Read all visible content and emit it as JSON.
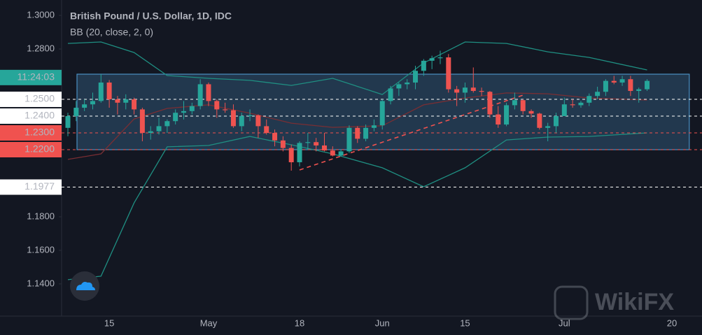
{
  "chart_data": {
    "type": "candlestick",
    "title": "British Pound / U.S. Dollar, 1D, IDC",
    "subtitle": "BB (20, close, 2, 0)",
    "categories": [
      null,
      null,
      null,
      null,
      null,
      "15",
      null,
      null,
      null,
      null,
      null,
      null,
      null,
      null,
      null,
      null,
      null,
      "May",
      null,
      null,
      null,
      null,
      null,
      null,
      null,
      null,
      null,
      null,
      "18",
      null,
      null,
      null,
      null,
      null,
      null,
      null,
      null,
      null,
      "Jun",
      null,
      null,
      null,
      null,
      null,
      null,
      null,
      null,
      null,
      "15",
      null,
      null,
      null,
      null,
      null,
      null,
      null,
      null,
      null,
      null,
      null,
      "Jul",
      null,
      null,
      null,
      null,
      null,
      null,
      null,
      null,
      null,
      null,
      null,
      null,
      "20"
    ],
    "open": [
      1.233,
      1.24,
      1.245,
      1.247,
      1.249,
      1.26,
      1.25,
      1.248,
      1.25,
      1.244,
      1.23,
      1.231,
      1.234,
      1.237,
      1.242,
      1.243,
      1.246,
      1.259,
      1.249,
      1.244,
      1.2435,
      1.234,
      1.24,
      1.2405,
      1.234,
      1.23,
      1.2255,
      1.221,
      1.2125,
      1.224,
      1.2245,
      1.2225,
      1.2195,
      1.2165,
      1.219,
      1.233,
      1.2265,
      1.233,
      1.2345,
      1.249,
      1.2565,
      1.259,
      1.26,
      1.267,
      1.273,
      1.2745,
      1.275,
      1.256,
      1.254,
      1.257,
      1.255,
      1.2545,
      1.241,
      1.235,
      1.2465,
      1.2495,
      1.243,
      1.2415,
      1.233,
      1.234,
      1.24,
      1.247,
      1.2465,
      1.248,
      1.252,
      1.2545,
      1.261,
      1.26,
      1.262,
      1.255,
      1.256,
      null,
      null,
      null
    ],
    "high": [
      1.242,
      1.249,
      1.25,
      1.254,
      1.265,
      1.2615,
      1.252,
      1.253,
      1.251,
      1.245,
      1.234,
      1.239,
      1.238,
      1.244,
      1.249,
      1.248,
      1.262,
      1.26,
      1.25,
      1.248,
      1.247,
      1.242,
      1.244,
      1.241,
      1.238,
      1.232,
      1.228,
      1.223,
      1.225,
      1.23,
      1.227,
      1.23,
      1.222,
      1.22,
      1.2345,
      1.234,
      1.235,
      1.238,
      1.25,
      1.258,
      1.26,
      1.262,
      1.27,
      1.274,
      1.276,
      1.279,
      1.277,
      1.258,
      1.26,
      1.269,
      1.257,
      1.255,
      1.246,
      1.248,
      1.254,
      1.25,
      1.244,
      1.242,
      1.236,
      1.242,
      1.251,
      1.25,
      1.249,
      1.2535,
      1.2575,
      1.262,
      1.264,
      1.264,
      1.264,
      1.257,
      1.262,
      null,
      null,
      null
    ],
    "low": [
      1.228,
      1.237,
      1.243,
      1.244,
      1.248,
      1.245,
      1.241,
      1.244,
      1.241,
      1.225,
      1.226,
      1.229,
      1.23,
      1.235,
      1.238,
      1.241,
      1.244,
      1.246,
      1.239,
      1.242,
      1.233,
      1.231,
      1.237,
      1.227,
      1.229,
      1.222,
      1.219,
      1.2075,
      1.21,
      1.22,
      1.219,
      1.219,
      1.216,
      1.216,
      1.218,
      1.224,
      1.225,
      1.231,
      1.232,
      1.247,
      1.252,
      1.256,
      1.256,
      1.264,
      1.268,
      1.271,
      1.254,
      1.246,
      1.248,
      1.254,
      1.252,
      1.239,
      1.233,
      1.234,
      1.244,
      1.241,
      1.239,
      1.232,
      1.225,
      1.23,
      1.24,
      1.245,
      1.245,
      1.246,
      1.25,
      1.252,
      1.259,
      1.258,
      1.252,
      1.248,
      1.255,
      null,
      null,
      null
    ],
    "close": [
      1.24,
      1.245,
      1.247,
      1.249,
      1.26,
      1.25,
      1.248,
      1.25,
      1.244,
      1.23,
      1.231,
      1.234,
      1.237,
      1.242,
      1.243,
      1.246,
      1.259,
      1.249,
      1.244,
      1.2435,
      1.234,
      1.24,
      1.2405,
      1.234,
      1.23,
      1.2255,
      1.221,
      1.2125,
      1.224,
      1.2245,
      1.2225,
      1.2195,
      1.2165,
      1.219,
      1.233,
      1.2265,
      1.233,
      1.2345,
      1.249,
      1.2565,
      1.259,
      1.26,
      1.267,
      1.273,
      1.2745,
      1.275,
      1.256,
      1.254,
      1.257,
      1.255,
      1.2545,
      1.241,
      1.235,
      1.2465,
      1.2495,
      1.243,
      1.2415,
      1.233,
      1.234,
      1.24,
      1.247,
      1.2465,
      1.248,
      1.252,
      1.2545,
      1.261,
      1.26,
      1.262,
      1.255,
      1.256,
      1.261,
      null,
      null,
      null
    ],
    "up_color": "#26a69a",
    "down_color": "#ef5350",
    "overlays": [
      {
        "color": "#1f8f82",
        "x": [
          0,
          4,
          8,
          12,
          17,
          22,
          27,
          32,
          38,
          43,
          48,
          53,
          58,
          63,
          70
        ],
        "values": [
          1.2833,
          1.2842,
          1.2779,
          1.2642,
          1.2625,
          1.2613,
          1.2583,
          1.2625,
          1.2529,
          1.2717,
          1.2842,
          1.2833,
          1.2783,
          1.275,
          1.2675
        ]
      },
      {
        "color": "#7a2e33",
        "x": [
          0,
          4,
          8,
          12,
          17,
          22,
          27,
          32,
          38,
          43,
          48,
          53,
          58,
          63,
          70
        ],
        "values": [
          1.2142,
          1.2175,
          1.2383,
          1.2446,
          1.2467,
          1.2417,
          1.2358,
          1.2333,
          1.2342,
          1.2467,
          1.2508,
          1.2538,
          1.2533,
          1.2508,
          1.2496
        ]
      },
      {
        "color": "#1f8f82",
        "x": [
          0,
          4,
          8,
          12,
          17,
          22,
          27,
          32,
          38,
          43,
          48,
          53,
          58,
          63,
          70
        ],
        "values": [
          1.1425,
          1.1446,
          1.1883,
          1.2217,
          1.2225,
          1.2279,
          1.2229,
          1.2175,
          1.2092,
          1.1979,
          1.2092,
          1.2258,
          1.2275,
          1.2279,
          1.23
        ]
      },
      {
        "color": "#f0524f",
        "dash": true,
        "x": [
          28,
          55.25
        ],
        "values": [
          1.2079,
          1.2529
        ]
      }
    ],
    "box": {
      "x": [
        1.1,
        75.1
      ],
      "ylim": [
        1.22,
        1.265
      ],
      "color": "#4a90c2"
    },
    "price_lines": [
      {
        "value": 1.25,
        "label": "1.2500",
        "color": "#ffffff"
      },
      {
        "value": 1.24,
        "label": "1.2400",
        "color": "#ffffff"
      },
      {
        "value": 1.23,
        "label": "1.2300",
        "color": "#f0524f"
      },
      {
        "value": 1.22,
        "label": "1.2200",
        "color": "#f0524f"
      },
      {
        "value": 1.1977,
        "label": "1.1977",
        "color": "#ffffff"
      }
    ],
    "timer_label": {
      "value": 1.263,
      "label": "11:24:03",
      "color": "#26a69a"
    },
    "ylim": [
      1.1208,
      1.3092
    ],
    "yticks": [
      {
        "value": 1.3,
        "label": "1.3000"
      },
      {
        "value": 1.28,
        "label": "1.2800"
      },
      {
        "value": 1.18,
        "label": "1.1800"
      },
      {
        "value": 1.16,
        "label": "1.1600"
      },
      {
        "value": 1.14,
        "label": "1.1400"
      }
    ],
    "grid": false,
    "watermark": "WikiFX"
  }
}
